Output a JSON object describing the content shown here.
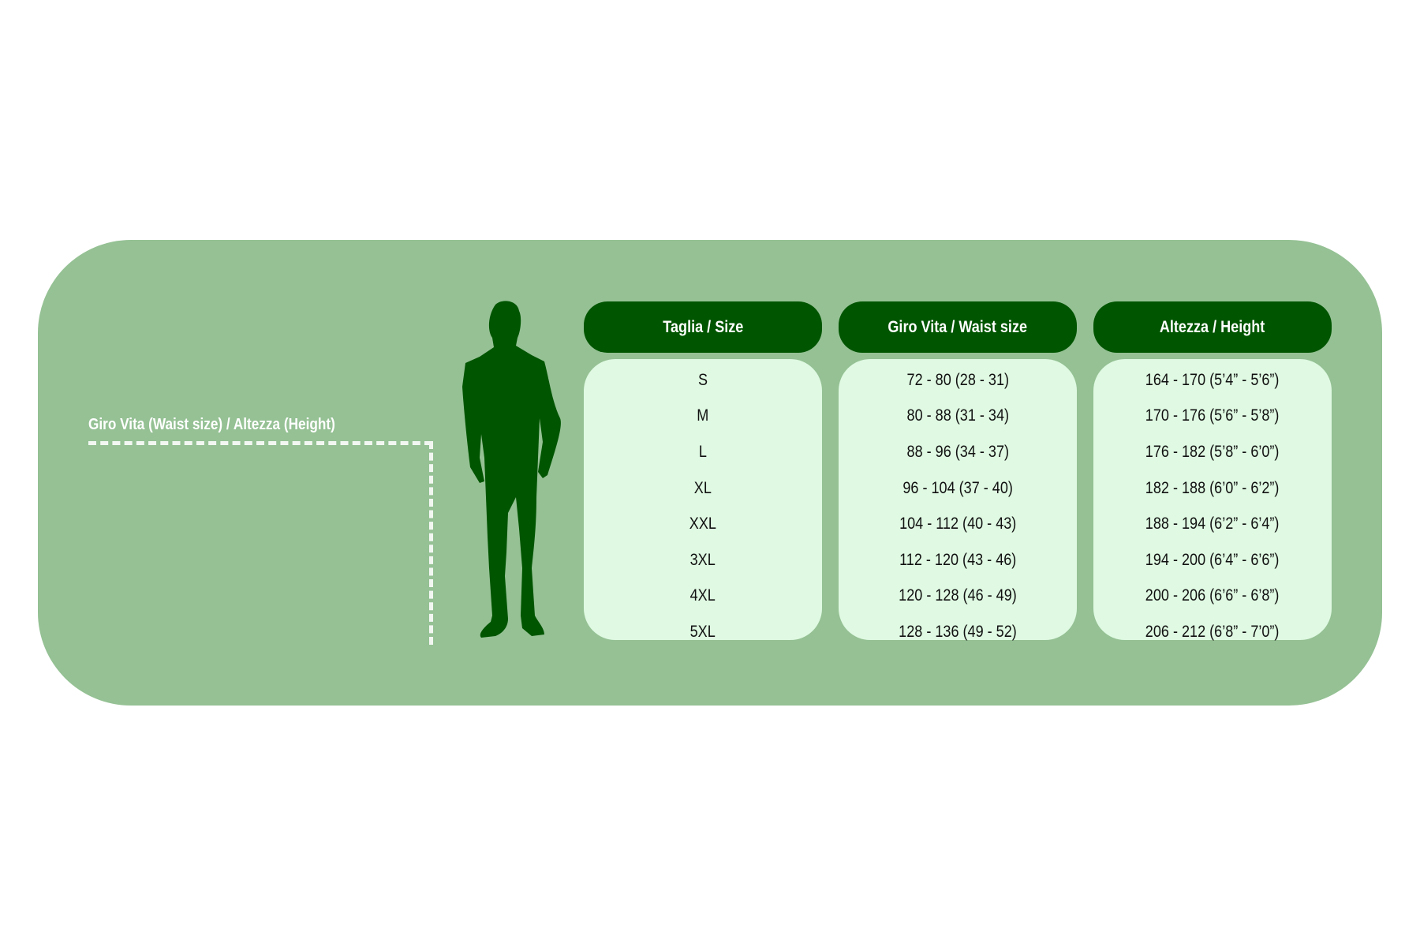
{
  "colors": {
    "panel": "#95c194",
    "header": "#005500",
    "body": "#dff9e2",
    "silhouette": "#005500"
  },
  "measure_label": "Giro Vita  (Waist size) / Altezza (Height)",
  "columns": [
    {
      "header": "Taglia / Size",
      "values": [
        "S",
        "M",
        "L",
        "XL",
        "XXL",
        "3XL",
        "4XL",
        "5XL"
      ]
    },
    {
      "header": "Giro Vita / Waist size",
      "values": [
        "72 - 80 (28 - 31)",
        "80 - 88 (31 - 34)",
        "88 - 96 (34 - 37)",
        "96 - 104 (37 - 40)",
        "104 - 112 (40 - 43)",
        "112 - 120 (43 - 46)",
        "120 - 128 (46 - 49)",
        "128 - 136 (49 - 52)"
      ]
    },
    {
      "header": "Altezza / Height",
      "values": [
        "164 - 170 (5’4” - 5’6”)",
        "170 - 176 (5’6” - 5’8”)",
        "176 - 182 (5’8” - 6’0”)",
        "182 - 188 (6’0” - 6’2”)",
        "188 - 194 (6’2” - 6’4”)",
        "194 - 200 (6’4” - 6’6”)",
        "200 - 206 (6’6” - 6’8”)",
        "206 - 212 (6’8” - 7’0”)"
      ]
    }
  ]
}
